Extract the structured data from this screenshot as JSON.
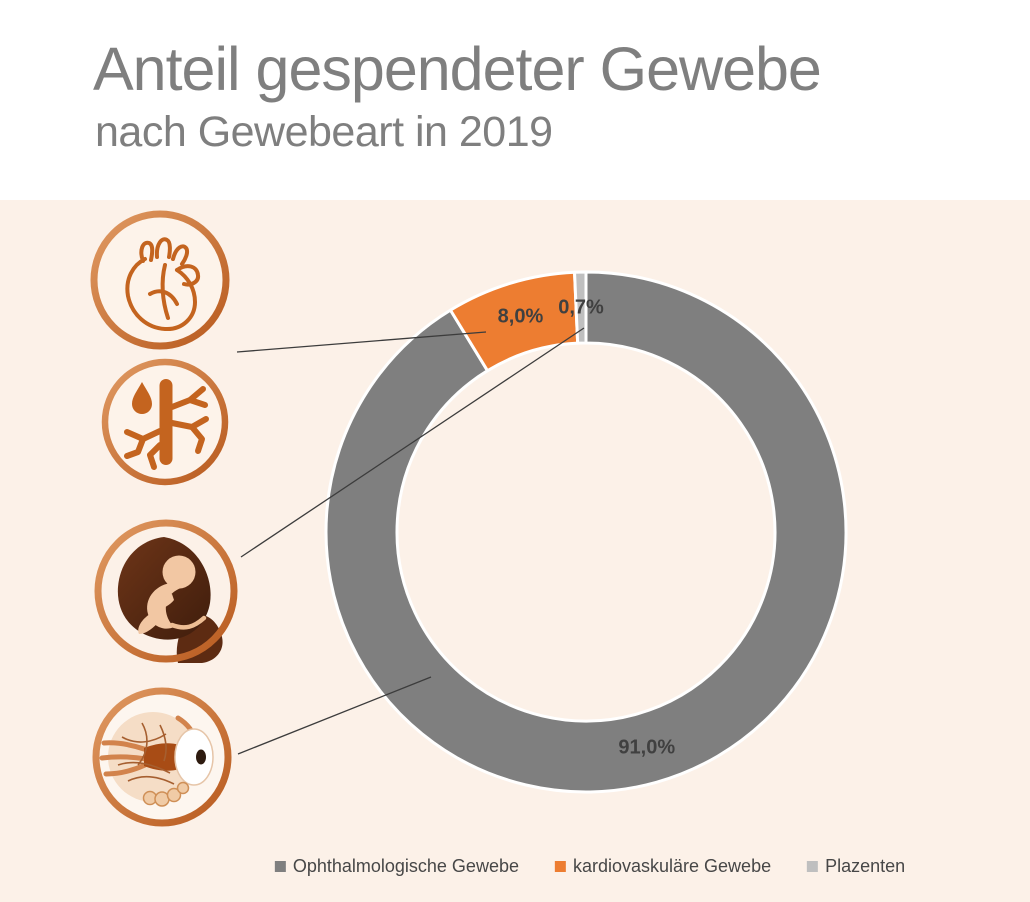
{
  "header": {
    "title": "Anteil gespendeter Gewebe",
    "subtitle": "nach Gewebeart in 2019"
  },
  "chart_data": {
    "type": "pie",
    "variant": "donut",
    "title": "Anteil gespendeter Gewebe nach Gewebeart in 2019",
    "series": [
      {
        "name": "Ophthalmologische Gewebe",
        "value": 91.0,
        "label": "91,0%",
        "color": "#7F7F7F"
      },
      {
        "name": "kardiovaskuläre Gewebe",
        "value": 8.0,
        "label": "8,0%",
        "color": "#ED7D31"
      },
      {
        "name": "Plazenten",
        "value": 0.7,
        "label": "0,7%",
        "color": "#BFBFBF"
      }
    ],
    "start_angle_deg": 0,
    "direction": "clockwise",
    "donut_hole_ratio": 0.73,
    "legend_position": "bottom",
    "data_label_color": "#404040"
  },
  "icons": {
    "items": [
      {
        "name": "heart-icon"
      },
      {
        "name": "blood-vessel-icon"
      },
      {
        "name": "fetus-icon"
      },
      {
        "name": "eye-icon"
      }
    ]
  },
  "colors": {
    "header_background": "#FFFFFF",
    "chart_background": "#FCF1E8",
    "title_gray": "#7F7F7F",
    "label_dark": "#404040",
    "icon_orange": "#C4641F"
  }
}
